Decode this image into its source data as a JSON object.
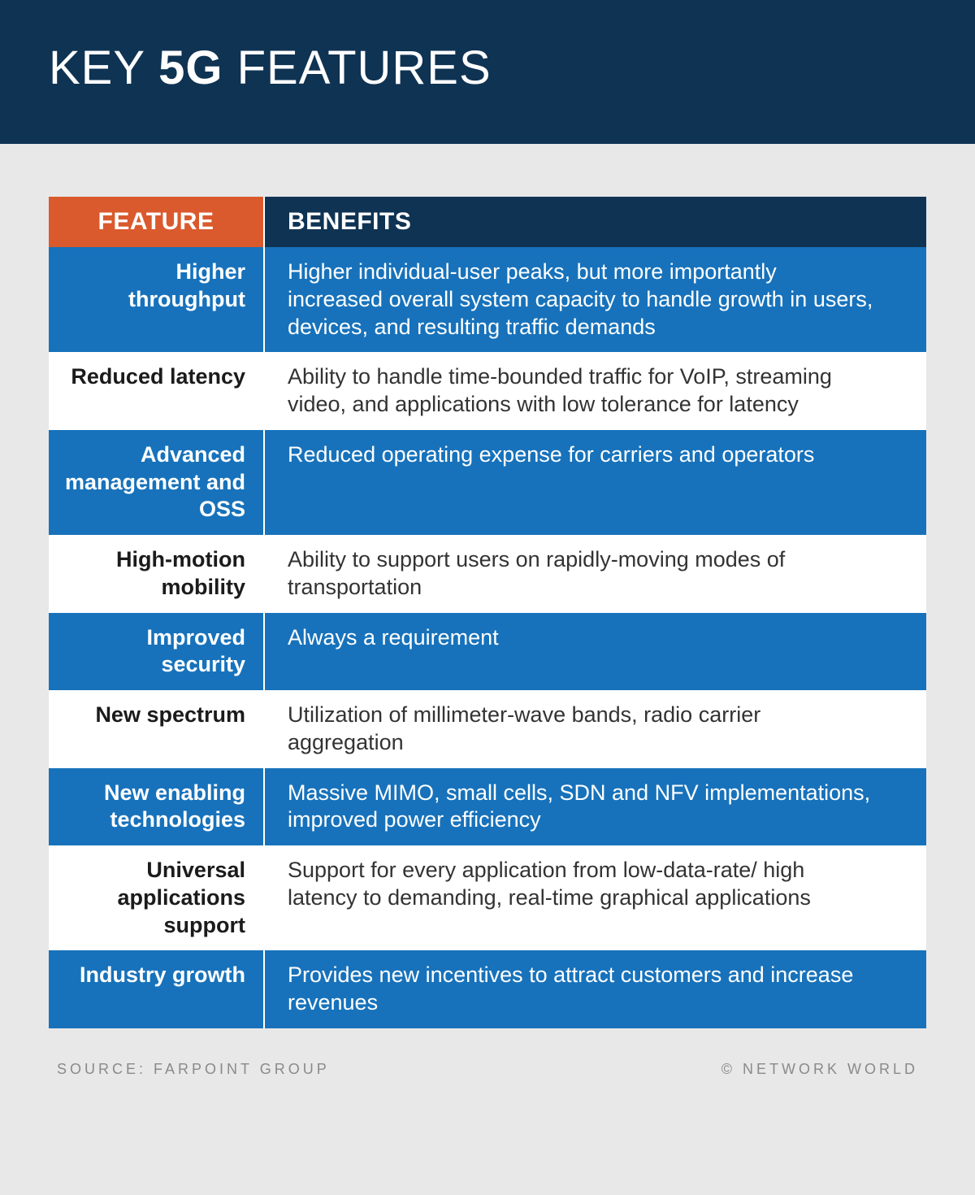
{
  "title": {
    "pre": "KEY ",
    "bold": "5G",
    "post": " FEATURES"
  },
  "columns": {
    "feature": "FEATURE",
    "benefits": "BENEFITS"
  },
  "rows": [
    {
      "variant": "blue",
      "feature": "Higher throughput",
      "benefit": "Higher individual-user peaks, but more importantly increased overall system capacity to handle growth in users, devices, and resulting traffic demands"
    },
    {
      "variant": "white",
      "feature": "Reduced latency",
      "benefit": "Ability to handle time-bounded traffic for VoIP, streaming video, and applications with low tolerance for latency"
    },
    {
      "variant": "blue",
      "feature": "Advanced management and OSS",
      "benefit": "Reduced operating expense for carriers and operators"
    },
    {
      "variant": "white",
      "feature": "High-motion mobility",
      "benefit": "Ability to support users on rapidly-moving modes of transportation"
    },
    {
      "variant": "blue",
      "feature": "Improved security",
      "benefit": "Always a requirement"
    },
    {
      "variant": "white",
      "feature": "New spectrum",
      "benefit": "Utilization of millimeter-wave bands, radio carrier aggregation"
    },
    {
      "variant": "blue",
      "feature": "New enabling technologies",
      "benefit": "Massive MIMO, small cells, SDN and NFV implementations, improved power efficiency"
    },
    {
      "variant": "white",
      "feature": "Universal applications support",
      "benefit": "Support for every application from low-data-rate/ high latency to demanding, real-time graphical applications"
    },
    {
      "variant": "blue",
      "feature": "Industry growth",
      "benefit": "Provides new incentives to attract customers and increase revenues"
    }
  ],
  "footer": {
    "source": "SOURCE: FARPOINT GROUP",
    "copyright": "© NETWORK WORLD"
  },
  "colors": {
    "header_bg": "#0f3353",
    "page_bg": "#e8e8e8",
    "accent_orange": "#da5a2d",
    "row_blue": "#1772bb",
    "row_white": "#ffffff",
    "footer_text": "#8a8a8a"
  }
}
